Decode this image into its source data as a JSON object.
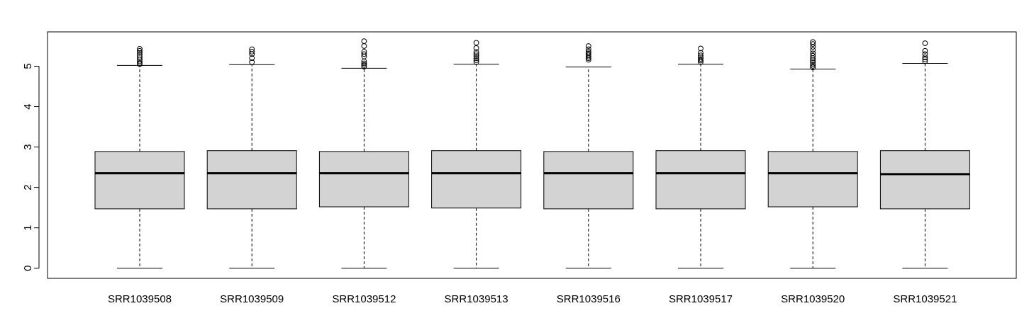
{
  "chart_data": {
    "type": "boxplot",
    "title": "",
    "xlabel": "",
    "ylabel": "",
    "ylim": [
      -0.25,
      5.85
    ],
    "yticks": [
      0,
      1,
      2,
      3,
      4,
      5
    ],
    "grid": false,
    "legend": "none",
    "box_fill": "#d3d3d3",
    "line_color": "#000000",
    "categories": [
      "SRR1039508",
      "SRR1039509",
      "SRR1039512",
      "SRR1039513",
      "SRR1039516",
      "SRR1039517",
      "SRR1039520",
      "SRR1039521"
    ],
    "boxes": [
      {
        "whisker_low": 0,
        "q1": 1.47,
        "median": 2.35,
        "q3": 2.89,
        "whisker_high": 5.02,
        "outliers": [
          5.05,
          5.08,
          5.12,
          5.17,
          5.23,
          5.28,
          5.33,
          5.38,
          5.43
        ]
      },
      {
        "whisker_low": 0,
        "q1": 1.47,
        "median": 2.35,
        "q3": 2.91,
        "whisker_high": 5.04,
        "outliers": [
          5.1,
          5.2,
          5.3,
          5.36,
          5.42
        ]
      },
      {
        "whisker_low": 0,
        "q1": 1.52,
        "median": 2.35,
        "q3": 2.89,
        "whisker_high": 4.95,
        "outliers": [
          4.99,
          5.03,
          5.07,
          5.12,
          5.24,
          5.3,
          5.36,
          5.5,
          5.62
        ]
      },
      {
        "whisker_low": 0,
        "q1": 1.49,
        "median": 2.35,
        "q3": 2.91,
        "whisker_high": 5.05,
        "outliers": [
          5.1,
          5.15,
          5.2,
          5.25,
          5.3,
          5.35,
          5.45,
          5.58
        ]
      },
      {
        "whisker_low": 0,
        "q1": 1.47,
        "median": 2.35,
        "q3": 2.89,
        "whisker_high": 4.98,
        "outliers": [
          5.16,
          5.2,
          5.24,
          5.28,
          5.32,
          5.36,
          5.42,
          5.5
        ]
      },
      {
        "whisker_low": 0,
        "q1": 1.47,
        "median": 2.35,
        "q3": 2.91,
        "whisker_high": 5.05,
        "outliers": [
          5.1,
          5.14,
          5.18,
          5.22,
          5.27,
          5.33,
          5.44
        ]
      },
      {
        "whisker_low": 0,
        "q1": 1.52,
        "median": 2.35,
        "q3": 2.89,
        "whisker_high": 4.93,
        "outliers": [
          4.97,
          5.01,
          5.05,
          5.1,
          5.15,
          5.2,
          5.26,
          5.32,
          5.4,
          5.48,
          5.55,
          5.6
        ]
      },
      {
        "whisker_low": 0,
        "q1": 1.47,
        "median": 2.33,
        "q3": 2.91,
        "whisker_high": 5.07,
        "outliers": [
          5.12,
          5.17,
          5.22,
          5.3,
          5.38,
          5.57
        ]
      }
    ]
  }
}
